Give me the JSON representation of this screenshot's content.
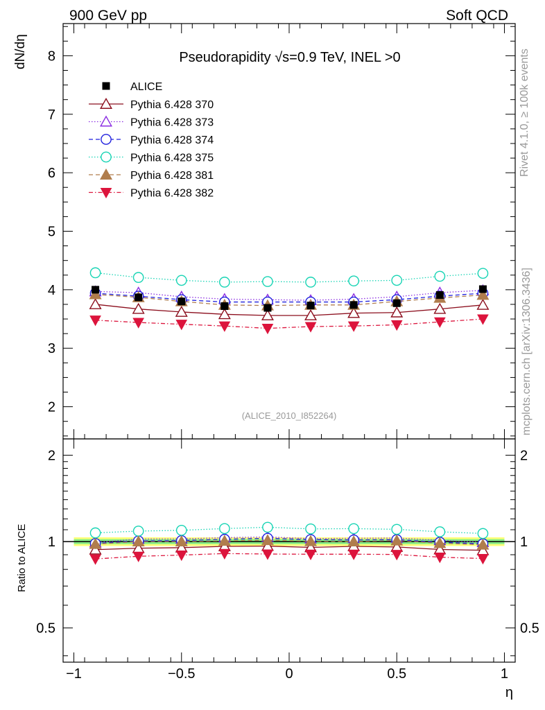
{
  "header": {
    "left": "900 GeV pp",
    "right": "Soft QCD"
  },
  "side_labels": {
    "rivet": "Rivet 4.1.0, ≥ 100k events",
    "mcplots": "mcplots.cern.ch [arXiv:1306.3436]"
  },
  "chart_data": {
    "type": "line",
    "title": "Pseudorapidity √s=0.9 TeV, INEL >0",
    "watermark": "(ALICE_2010_I852264)",
    "xlabel": "η",
    "ylabel": "dN/dη",
    "ratio_ylabel": "Ratio to ALICE",
    "xlim": [
      -1.05,
      1.05
    ],
    "ylim": [
      1.45,
      8.55
    ],
    "ratio_ylim": [
      0.38,
      2.28
    ],
    "x_ticks": [
      "−1",
      "−0.5",
      "0",
      "0.5",
      "1"
    ],
    "y_ticks": [
      "2",
      "3",
      "4",
      "5",
      "6",
      "7",
      "8"
    ],
    "ratio_ticks": [
      "0.5",
      "1",
      "2"
    ],
    "x": [
      -0.9,
      -0.7,
      -0.5,
      -0.3,
      -0.1,
      0.1,
      0.3,
      0.5,
      0.7,
      0.9
    ],
    "reference": {
      "name": "ALICE",
      "color": "#000000",
      "values": [
        4.0,
        3.87,
        3.8,
        3.72,
        3.69,
        3.73,
        3.74,
        3.77,
        3.91,
        4.01
      ],
      "band_inner": 0.02,
      "band_outer": 0.035
    },
    "series": [
      {
        "name": "Pythia 6.428 370",
        "color": "#8b0d1c",
        "marker": "triangle-open",
        "dash": "",
        "values": [
          3.75,
          3.67,
          3.62,
          3.58,
          3.56,
          3.56,
          3.6,
          3.61,
          3.67,
          3.74
        ]
      },
      {
        "name": "Pythia 6.428 373",
        "color": "#8a2be2",
        "marker": "triangle-open",
        "dash": "1.5 2.5",
        "values": [
          3.97,
          3.95,
          3.88,
          3.84,
          3.83,
          3.82,
          3.84,
          3.88,
          3.95,
          3.99
        ]
      },
      {
        "name": "Pythia 6.428 374",
        "color": "#1f1fdd",
        "marker": "circle-open",
        "dash": "6 4",
        "values": [
          3.94,
          3.89,
          3.83,
          3.79,
          3.79,
          3.79,
          3.79,
          3.83,
          3.89,
          3.94
        ]
      },
      {
        "name": "Pythia 6.428 375",
        "color": "#17d4b4",
        "marker": "circle-open",
        "dash": "1.5 2.5",
        "values": [
          4.29,
          4.21,
          4.16,
          4.13,
          4.14,
          4.13,
          4.15,
          4.16,
          4.23,
          4.28
        ]
      },
      {
        "name": "Pythia 6.428 381",
        "color": "#b07d4d",
        "marker": "triangle-filled",
        "dash": "6 4",
        "values": [
          3.92,
          3.87,
          3.8,
          3.74,
          3.73,
          3.74,
          3.74,
          3.8,
          3.86,
          3.91
        ]
      },
      {
        "name": "Pythia 6.428 382",
        "color": "#dc143c",
        "marker": "triangle-down-filled",
        "dash": "6 3 1.5 3",
        "values": [
          3.48,
          3.44,
          3.41,
          3.38,
          3.34,
          3.37,
          3.38,
          3.4,
          3.45,
          3.5
        ]
      }
    ]
  }
}
